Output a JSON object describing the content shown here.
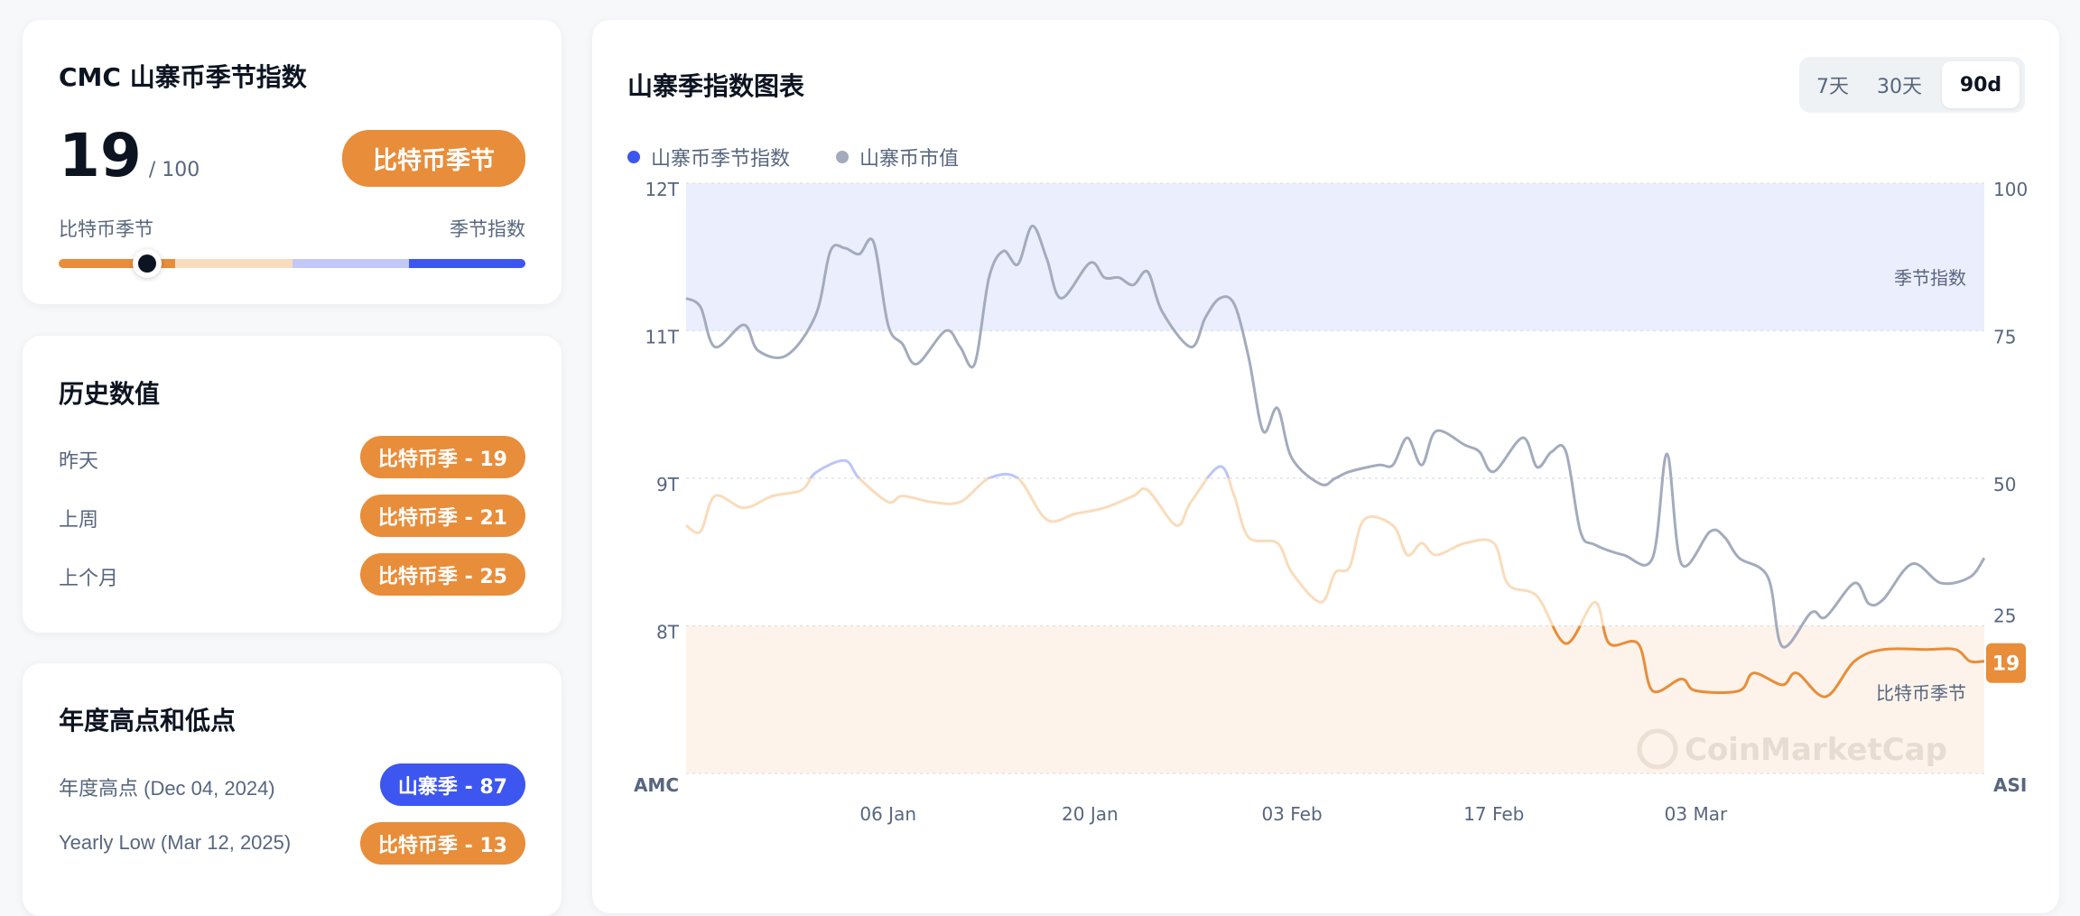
{
  "current": {
    "title": "CMC 山寨币季节指数",
    "value": "19",
    "max": "/ 100",
    "status": "比特币季节",
    "scale_left": "比特币季节",
    "scale_right": "季节指数",
    "level": 19
  },
  "history": {
    "title": "历史数值",
    "rows": [
      {
        "label": "昨天",
        "badge": "比特币季 - 19"
      },
      {
        "label": "上周",
        "badge": "比特币季 - 21"
      },
      {
        "label": "上个月",
        "badge": "比特币季 - 25"
      }
    ]
  },
  "yearly": {
    "title": "年度高点和低点",
    "rows": [
      {
        "label": "年度高点 (Dec 04, 2024)",
        "badge": "山寨季 - 87",
        "kind": "altcoin"
      },
      {
        "label": "Yearly Low (Mar 12, 2025)",
        "badge": "比特币季 - 13",
        "kind": "bitcoin"
      }
    ]
  },
  "chart_panel": {
    "title": "山寨季指数图表",
    "ranges": [
      "7天",
      "30天",
      "90d"
    ],
    "active_range": "90d",
    "watermark": "CoinMarketCap"
  },
  "colors": {
    "bitcoin": "#e88d3a",
    "altcoin": "#3d56f0",
    "marketcap": "#a3abbd",
    "peach": "#f9dcbb",
    "lightblue": "#bcc5f7"
  },
  "chart_data": {
    "type": "line",
    "xlim": [
      "2024-12-23",
      "2025-03-23"
    ],
    "x_ticks": [
      {
        "date": "2025-01-06",
        "label": "06 Jan"
      },
      {
        "date": "2025-01-20",
        "label": "20 Jan"
      },
      {
        "date": "2025-02-03",
        "label": "03 Feb"
      },
      {
        "date": "2025-02-17",
        "label": "17 Feb"
      },
      {
        "date": "2025-03-03",
        "label": "03 Mar"
      }
    ],
    "left_axis": {
      "label": "AMC",
      "ticks": [
        "12T",
        "11T",
        "9T",
        "8T"
      ],
      "tick_values": [
        12,
        11,
        9,
        8
      ]
    },
    "right_axis": {
      "label": "ASI",
      "ticks": [
        "100",
        "75",
        "50",
        "25"
      ],
      "ylim": [
        0,
        100
      ]
    },
    "zones": [
      {
        "label": "季节指数",
        "from": 75,
        "to": 100,
        "color": "#ebeefd"
      },
      {
        "label": "比特币季节",
        "from": 0,
        "to": 25,
        "color": "#fdf3ea"
      }
    ],
    "current_label": "19",
    "legend": [
      "山寨币季节指数",
      "山寨币市值"
    ],
    "grid": true,
    "series": [
      {
        "name": "山寨币季节指数",
        "axis": "right",
        "points": [
          [
            "2024-12-23",
            42
          ],
          [
            "2024-12-24",
            41
          ],
          [
            "2024-12-25",
            47
          ],
          [
            "2024-12-27",
            45
          ],
          [
            "2024-12-29",
            47
          ],
          [
            "2024-12-31",
            48
          ],
          [
            "2025-01-01",
            51
          ],
          [
            "2025-01-03",
            53
          ],
          [
            "2025-01-04",
            50
          ],
          [
            "2025-01-06",
            46
          ],
          [
            "2025-01-07",
            47
          ],
          [
            "2025-01-09",
            46
          ],
          [
            "2025-01-11",
            46
          ],
          [
            "2025-01-13",
            50
          ],
          [
            "2025-01-15",
            50
          ],
          [
            "2025-01-17",
            43
          ],
          [
            "2025-01-19",
            44
          ],
          [
            "2025-01-21",
            45
          ],
          [
            "2025-01-23",
            47
          ],
          [
            "2025-01-24",
            48
          ],
          [
            "2025-01-26",
            42
          ],
          [
            "2025-01-27",
            46
          ],
          [
            "2025-01-29",
            52
          ],
          [
            "2025-01-30",
            47
          ],
          [
            "2025-01-31",
            40
          ],
          [
            "2025-02-02",
            39
          ],
          [
            "2025-02-03",
            34
          ],
          [
            "2025-02-05",
            29
          ],
          [
            "2025-02-06",
            34
          ],
          [
            "2025-02-07",
            35
          ],
          [
            "2025-02-08",
            43
          ],
          [
            "2025-02-10",
            42
          ],
          [
            "2025-02-11",
            37
          ],
          [
            "2025-02-12",
            39
          ],
          [
            "2025-02-13",
            37
          ],
          [
            "2025-02-15",
            39
          ],
          [
            "2025-02-17",
            39
          ],
          [
            "2025-02-18",
            32
          ],
          [
            "2025-02-20",
            30
          ],
          [
            "2025-02-22",
            22
          ],
          [
            "2025-02-24",
            29
          ],
          [
            "2025-02-25",
            22
          ],
          [
            "2025-02-27",
            22
          ],
          [
            "2025-02-28",
            14
          ],
          [
            "2025-03-02",
            16
          ],
          [
            "2025-03-03",
            14
          ],
          [
            "2025-03-06",
            14
          ],
          [
            "2025-03-07",
            17
          ],
          [
            "2025-03-09",
            15
          ],
          [
            "2025-03-10",
            17
          ],
          [
            "2025-03-12",
            13
          ],
          [
            "2025-03-14",
            19
          ],
          [
            "2025-03-16",
            21
          ],
          [
            "2025-03-19",
            21
          ],
          [
            "2025-03-21",
            21
          ],
          [
            "2025-03-22",
            19
          ],
          [
            "2025-03-23",
            19
          ]
        ]
      },
      {
        "name": "山寨币市值",
        "axis": "left",
        "unit": "T",
        "points": [
          [
            "2024-12-23",
            11.22
          ],
          [
            "2024-12-24",
            11.16
          ],
          [
            "2024-12-25",
            10.78
          ],
          [
            "2024-12-27",
            11.04
          ],
          [
            "2024-12-28",
            10.73
          ],
          [
            "2024-12-30",
            10.67
          ],
          [
            "2025-01-01",
            11.11
          ],
          [
            "2025-01-02",
            11.54
          ],
          [
            "2025-01-03",
            11.56
          ],
          [
            "2025-01-04",
            11.52
          ],
          [
            "2025-01-05",
            11.6
          ],
          [
            "2025-01-06",
            11.04
          ],
          [
            "2025-01-07",
            10.82
          ],
          [
            "2025-01-08",
            10.55
          ],
          [
            "2025-01-10",
            11.0
          ],
          [
            "2025-01-11",
            10.78
          ],
          [
            "2025-01-12",
            10.55
          ],
          [
            "2025-01-13",
            11.36
          ],
          [
            "2025-01-14",
            11.54
          ],
          [
            "2025-01-15",
            11.45
          ],
          [
            "2025-01-16",
            11.71
          ],
          [
            "2025-01-17",
            11.49
          ],
          [
            "2025-01-18",
            11.22
          ],
          [
            "2025-01-20",
            11.46
          ],
          [
            "2025-01-21",
            11.36
          ],
          [
            "2025-01-22",
            11.36
          ],
          [
            "2025-01-23",
            11.31
          ],
          [
            "2025-01-24",
            11.4
          ],
          [
            "2025-01-25",
            11.13
          ],
          [
            "2025-01-27",
            10.78
          ],
          [
            "2025-01-28",
            11.09
          ],
          [
            "2025-01-29",
            11.22
          ],
          [
            "2025-01-30",
            11.18
          ],
          [
            "2025-01-31",
            10.64
          ],
          [
            "2025-02-01",
            9.64
          ],
          [
            "2025-02-02",
            9.95
          ],
          [
            "2025-02-03",
            9.27
          ],
          [
            "2025-02-05",
            8.96
          ],
          [
            "2025-02-06",
            9.0
          ],
          [
            "2025-02-07",
            9.09
          ],
          [
            "2025-02-09",
            9.18
          ],
          [
            "2025-02-10",
            9.18
          ],
          [
            "2025-02-11",
            9.55
          ],
          [
            "2025-02-12",
            9.18
          ],
          [
            "2025-02-13",
            9.64
          ],
          [
            "2025-02-15",
            9.45
          ],
          [
            "2025-02-16",
            9.36
          ],
          [
            "2025-02-17",
            9.09
          ],
          [
            "2025-02-19",
            9.55
          ],
          [
            "2025-02-20",
            9.15
          ],
          [
            "2025-02-21",
            9.36
          ],
          [
            "2025-02-22",
            9.36
          ],
          [
            "2025-02-23",
            8.64
          ],
          [
            "2025-02-24",
            8.55
          ],
          [
            "2025-02-26",
            8.48
          ],
          [
            "2025-02-28",
            8.46
          ],
          [
            "2025-03-01",
            9.33
          ],
          [
            "2025-03-02",
            8.42
          ],
          [
            "2025-03-04",
            8.64
          ],
          [
            "2025-03-05",
            8.6
          ],
          [
            "2025-03-06",
            8.46
          ],
          [
            "2025-03-08",
            8.33
          ],
          [
            "2025-03-09",
            7.86
          ],
          [
            "2025-03-11",
            8.09
          ],
          [
            "2025-03-12",
            8.06
          ],
          [
            "2025-03-14",
            8.29
          ],
          [
            "2025-03-15",
            8.15
          ],
          [
            "2025-03-16",
            8.18
          ],
          [
            "2025-03-18",
            8.42
          ],
          [
            "2025-03-20",
            8.29
          ],
          [
            "2025-03-22",
            8.33
          ],
          [
            "2025-03-23",
            8.46
          ]
        ]
      }
    ]
  }
}
